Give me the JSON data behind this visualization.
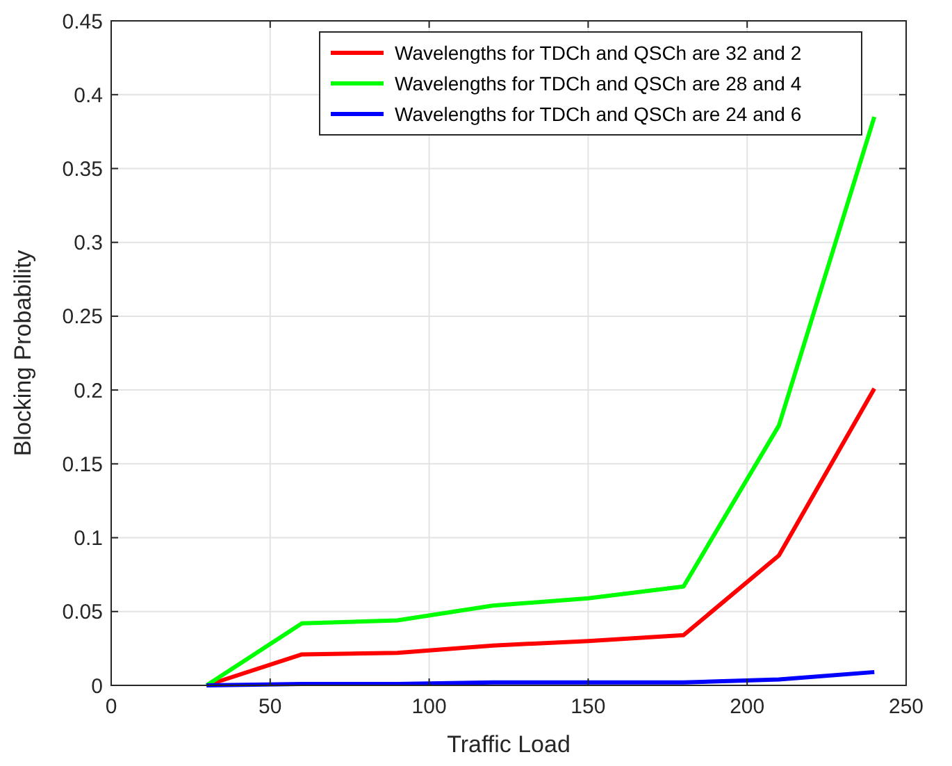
{
  "chart_data": {
    "type": "line",
    "xlabel": "Traffic Load",
    "ylabel": "Blocking Probability",
    "x": [
      30,
      60,
      90,
      120,
      150,
      180,
      210,
      240
    ],
    "series": [
      {
        "name": "Wavelengths for TDCh and QSCh are 32 and 2",
        "color": "#ff0000",
        "values": [
          0,
          0.021,
          0.022,
          0.027,
          0.03,
          0.034,
          0.088,
          0.201
        ]
      },
      {
        "name": "Wavelengths for TDCh and QSCh are 28 and 4",
        "color": "#00ff00",
        "values": [
          0,
          0.042,
          0.044,
          0.054,
          0.059,
          0.067,
          0.176,
          0.385
        ]
      },
      {
        "name": "Wavelengths for TDCh and QSCh are 24 and 6",
        "color": "#0000ff",
        "values": [
          0,
          0.001,
          0.001,
          0.002,
          0.002,
          0.002,
          0.004,
          0.009
        ]
      }
    ],
    "xlim": [
      0,
      250
    ],
    "xticks": [
      0,
      50,
      100,
      150,
      200,
      250
    ],
    "ylim": [
      0,
      0.45
    ],
    "yticks": [
      0,
      0.05,
      0.1,
      0.15,
      0.2,
      0.25,
      0.3,
      0.35,
      0.4,
      0.45
    ],
    "grid": true,
    "legend": "top right",
    "marker": "none",
    "line_style": "solid"
  }
}
